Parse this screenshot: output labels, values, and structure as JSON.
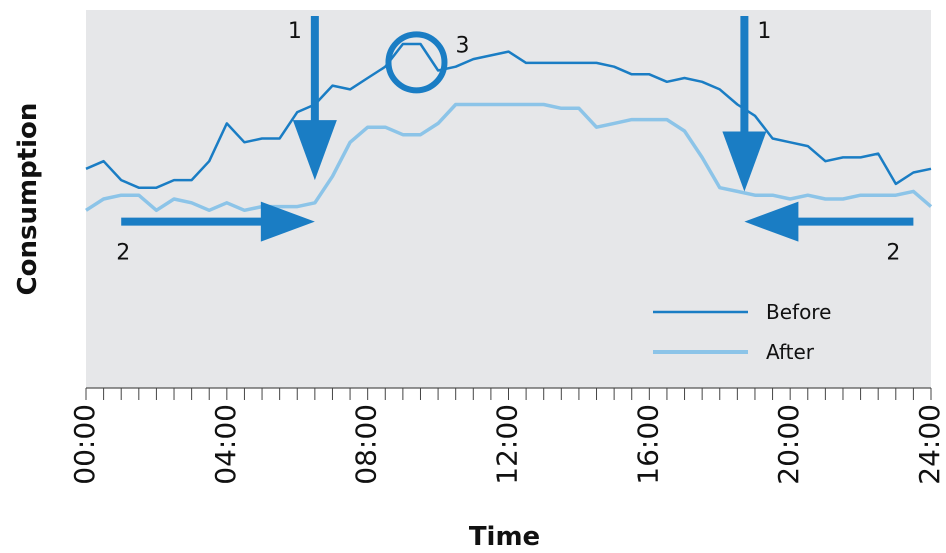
{
  "chart_data": {
    "type": "line",
    "title": "",
    "xlabel": "Time",
    "ylabel": "Consumption",
    "xlim": [
      0,
      24
    ],
    "ylim": [
      0,
      100
    ],
    "x_ticks": [
      "00:00",
      "04:00",
      "08:00",
      "12:00",
      "16:00",
      "20:00",
      "24:00"
    ],
    "x_tick_values": [
      0,
      4,
      8,
      12,
      16,
      20,
      24
    ],
    "minor_tick_step": 0.5,
    "grid": false,
    "legend_position": "bottom-right",
    "background_color": "#e6e7e9",
    "series": [
      {
        "name": "Before",
        "color": "#1a7dc4",
        "x": [
          0,
          0.5,
          1,
          1.5,
          2,
          2.5,
          3,
          3.5,
          4,
          4.5,
          5,
          5.5,
          6,
          6.5,
          7,
          7.5,
          8,
          8.5,
          9,
          9.5,
          10,
          10.5,
          11,
          11.5,
          12,
          12.5,
          13,
          13.5,
          14,
          14.5,
          15,
          15.5,
          16,
          16.5,
          17,
          17.5,
          18,
          18.5,
          19,
          19.5,
          20,
          20.5,
          21,
          21.5,
          22,
          22.5,
          23,
          23.5,
          24
        ],
        "values": [
          58,
          60,
          55,
          53,
          53,
          55,
          55,
          60,
          70,
          65,
          66,
          66,
          73,
          75,
          80,
          79,
          82,
          85,
          91,
          91,
          84,
          85,
          87,
          88,
          89,
          86,
          86,
          86,
          86,
          86,
          85,
          83,
          83,
          81,
          82,
          81,
          79,
          75,
          72,
          66,
          65,
          64,
          60,
          61,
          61,
          62,
          54,
          57,
          58
        ]
      },
      {
        "name": "After",
        "color": "#8cc4e8",
        "x": [
          0,
          0.5,
          1,
          1.5,
          2,
          2.5,
          3,
          3.5,
          4,
          4.5,
          5,
          5.5,
          6,
          6.5,
          7,
          7.5,
          8,
          8.5,
          9,
          9.5,
          10,
          10.5,
          11,
          11.5,
          12,
          12.5,
          13,
          13.5,
          14,
          14.5,
          15,
          15.5,
          16,
          16.5,
          17,
          17.5,
          18,
          18.5,
          19,
          19.5,
          20,
          20.5,
          21,
          21.5,
          22,
          22.5,
          23,
          23.5,
          24
        ],
        "values": [
          47,
          50,
          51,
          51,
          47,
          50,
          49,
          47,
          49,
          47,
          48,
          48,
          48,
          49,
          56,
          65,
          69,
          69,
          67,
          67,
          70,
          75,
          75,
          75,
          75,
          75,
          75,
          74,
          74,
          69,
          70,
          71,
          71,
          71,
          68,
          61,
          53,
          52,
          51,
          51,
          50,
          51,
          50,
          50,
          51,
          51,
          51,
          52,
          48
        ]
      }
    ],
    "annotations": [
      {
        "label": "1",
        "kind": "arrow-down",
        "x": 6.5,
        "from_y": 100,
        "to_y": 55
      },
      {
        "label": "1",
        "kind": "arrow-down",
        "x": 18.7,
        "from_y": 100,
        "to_y": 52
      },
      {
        "label": "2",
        "kind": "arrow-right",
        "y": 44,
        "from_x": 1,
        "to_x": 6.5
      },
      {
        "label": "2",
        "kind": "arrow-left",
        "y": 44,
        "from_x": 23.5,
        "to_x": 18.7
      },
      {
        "label": "3",
        "kind": "circle",
        "x": 9.5,
        "y": 88
      }
    ]
  }
}
